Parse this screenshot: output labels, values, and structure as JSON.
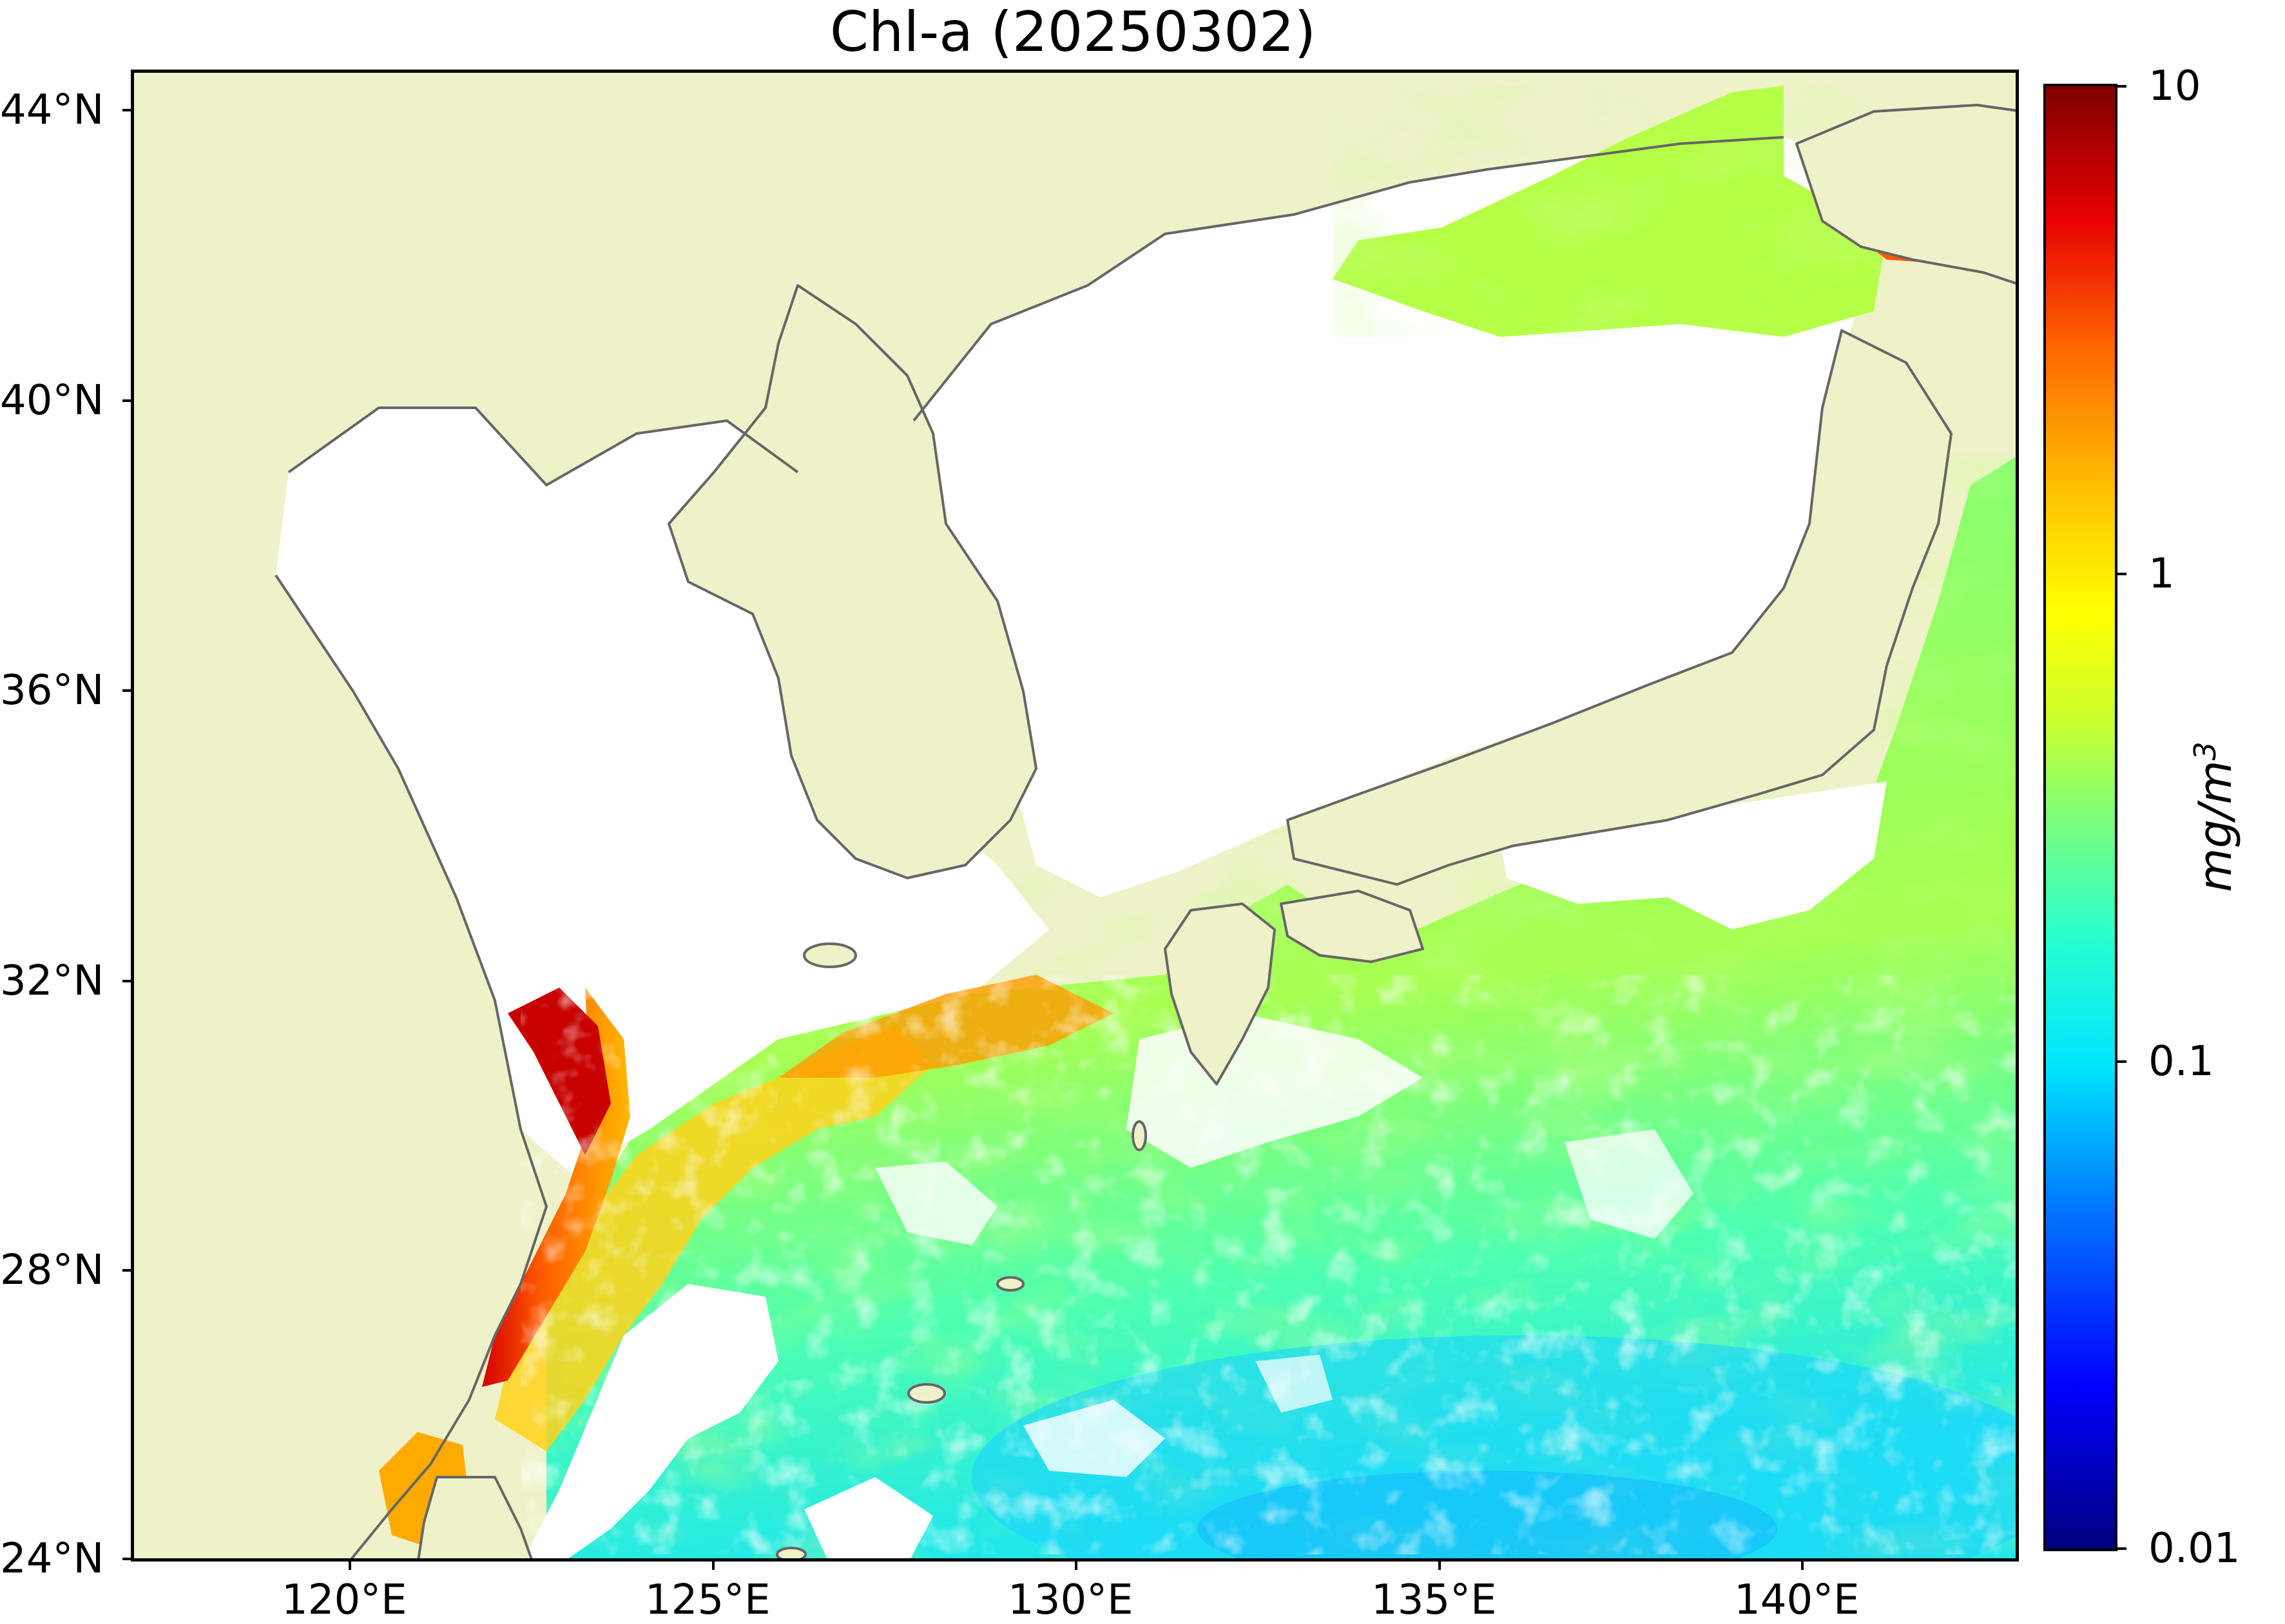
{
  "title": "Chl-a (20250302)",
  "map": {
    "region": "East China Sea / Sea of Japan / NW Pacific",
    "lon_range": [
      117,
      143
    ],
    "lat_range": [
      24,
      44.5
    ],
    "lat_ticks": [
      {
        "value": 44,
        "label": "44°N"
      },
      {
        "value": 40,
        "label": "40°N"
      },
      {
        "value": 36,
        "label": "36°N"
      },
      {
        "value": 32,
        "label": "32°N"
      },
      {
        "value": 28,
        "label": "28°N"
      },
      {
        "value": 24,
        "label": "24°N"
      }
    ],
    "lon_ticks": [
      {
        "value": 120,
        "label": "120°E"
      },
      {
        "value": 125,
        "label": "125°E"
      },
      {
        "value": 130,
        "label": "130°E"
      },
      {
        "value": 135,
        "label": "135°E"
      },
      {
        "value": 140,
        "label": "140°E"
      }
    ],
    "land_color": "#eff2c9",
    "coastline_color": "#666666",
    "no_data_color": "#ffffff"
  },
  "colorbar": {
    "scale": "log",
    "range": [
      0.01,
      10
    ],
    "unit": "mg/m",
    "unit_superscript": "3",
    "ticks": [
      {
        "value": 10,
        "label": "10"
      },
      {
        "value": 1,
        "label": "1"
      },
      {
        "value": 0.1,
        "label": "0.1"
      },
      {
        "value": 0.01,
        "label": "0.01"
      }
    ],
    "colormap": "jet"
  }
}
